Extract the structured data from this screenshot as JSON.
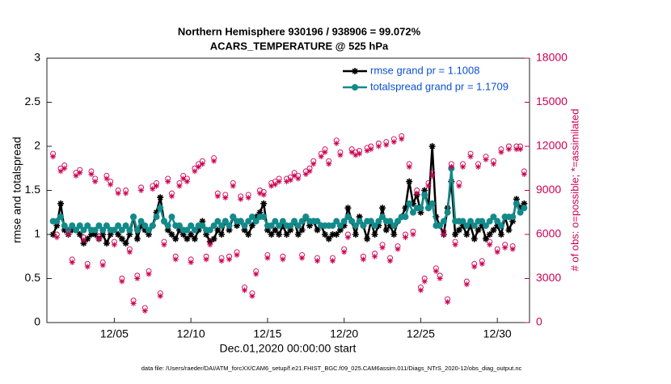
{
  "chart_data": {
    "type": "line",
    "title": [
      "Northern Hemisphere 930196 / 938906 = 99.072%",
      "ACARS_TEMPERATURE @ 525 hPa"
    ],
    "xlabel": "Dec.01,2020 00:00:00 start",
    "ylabel": "rmse and totalspread",
    "y2label": "# of obs: o=possible; *=assimilated",
    "footer": "data file: /Users/raeder/DAI/ATM_forcXX/CAM6_setup/f.e21.FHIST_BGC.f09_025.CAM6assim.011/Diags_NTrS_2020-12/obs_diag_output.nc",
    "xlim": [
      -0.4,
      31.1
    ],
    "xticks": [
      {
        "value": 4,
        "label": "12/05"
      },
      {
        "value": 9,
        "label": "12/10"
      },
      {
        "value": 14,
        "label": "12/15"
      },
      {
        "value": 19,
        "label": "12/20"
      },
      {
        "value": 24,
        "label": "12/25"
      },
      {
        "value": 29,
        "label": "12/30"
      }
    ],
    "ylim": [
      0,
      3
    ],
    "yticks": [
      0,
      0.5,
      1,
      1.5,
      2,
      2.5,
      3
    ],
    "y2lim": [
      0,
      18000
    ],
    "y2ticks": [
      0,
      3000,
      6000,
      9000,
      12000,
      15000,
      18000
    ],
    "grid": false,
    "legend": "upper right",
    "x": [
      0,
      0.25,
      0.5,
      0.75,
      1,
      1.25,
      1.5,
      1.75,
      2,
      2.25,
      2.5,
      2.75,
      3,
      3.25,
      3.5,
      3.75,
      4,
      4.25,
      4.5,
      4.75,
      5,
      5.25,
      5.5,
      5.75,
      6,
      6.25,
      6.5,
      6.75,
      7,
      7.25,
      7.5,
      7.75,
      8,
      8.25,
      8.5,
      8.75,
      9,
      9.25,
      9.5,
      9.75,
      10,
      10.25,
      10.5,
      10.75,
      11,
      11.25,
      11.5,
      11.75,
      12,
      12.25,
      12.5,
      12.75,
      13,
      13.25,
      13.5,
      13.75,
      14,
      14.25,
      14.5,
      14.75,
      15,
      15.25,
      15.5,
      15.75,
      16,
      16.25,
      16.5,
      16.75,
      17,
      17.25,
      17.5,
      17.75,
      18,
      18.25,
      18.5,
      18.75,
      19,
      19.25,
      19.5,
      19.75,
      20,
      20.25,
      20.5,
      20.75,
      21,
      21.25,
      21.5,
      21.75,
      22,
      22.25,
      22.5,
      22.75,
      23,
      23.25,
      23.5,
      23.75,
      24,
      24.25,
      24.5,
      24.75,
      25,
      25.25,
      25.5,
      25.75,
      26,
      26.25,
      26.5,
      26.75,
      27,
      27.25,
      27.5,
      27.75,
      28,
      28.25,
      28.5,
      28.75,
      29,
      29.25,
      29.5,
      29.75,
      30,
      30.25,
      30.5,
      30.75
    ],
    "series": [
      {
        "name": "rmse grand pr = 1.1008",
        "color": "#000000",
        "marker": "asterisk",
        "line": true,
        "axis": "y",
        "values": [
          1.0,
          1.1,
          1.35,
          1.05,
          1.0,
          1.05,
          1.05,
          1.0,
          0.9,
          0.95,
          1.0,
          1.0,
          0.95,
          1.0,
          0.9,
          1.0,
          1.05,
          1.0,
          0.95,
          0.9,
          1.0,
          1.2,
          0.95,
          1.1,
          1.05,
          1.0,
          1.1,
          1.25,
          1.42,
          1.15,
          1.05,
          1.0,
          0.95,
          1.05,
          1.0,
          0.95,
          1.0,
          0.95,
          1.05,
          1.15,
          1.0,
          0.92,
          0.95,
          1.05,
          1.0,
          1.15,
          1.05,
          1.2,
          1.1,
          1.15,
          1.05,
          1.0,
          1.1,
          1.2,
          1.25,
          1.35,
          1.05,
          1.0,
          1.05,
          1.0,
          1.1,
          1.0,
          1.05,
          1.15,
          1.0,
          1.05,
          1.2,
          1.1,
          1.15,
          1.05,
          1.1,
          1.0,
          0.95,
          1.0,
          1.0,
          1.05,
          1.1,
          1.3,
          1.15,
          1.0,
          1.2,
          1.1,
          0.95,
          1.15,
          1.0,
          1.1,
          1.3,
          1.05,
          1.1,
          1.0,
          1.15,
          1.2,
          1.3,
          1.6,
          1.35,
          1.45,
          1.25,
          1.5,
          1.3,
          2.0,
          1.2,
          1.1,
          1.0,
          1.3,
          1.6,
          1.0,
          1.05,
          1.1,
          1.0,
          1.1,
          0.95,
          1.05,
          1.1,
          0.95,
          1.0,
          1.05,
          1.1,
          1.0,
          1.2,
          1.05,
          1.15,
          1.4,
          1.3,
          1.35
        ]
      },
      {
        "name": "totalspread grand pr = 1.1709",
        "color": "#138a8a",
        "marker": "circle",
        "line": true,
        "axis": "y",
        "values": [
          1.15,
          1.15,
          1.2,
          1.1,
          1.05,
          1.1,
          1.05,
          1.1,
          1.05,
          1.1,
          1.05,
          1.05,
          1.1,
          1.05,
          1.1,
          1.05,
          1.05,
          1.1,
          1.05,
          1.1,
          1.05,
          1.2,
          1.05,
          1.15,
          1.1,
          1.05,
          1.1,
          1.2,
          1.3,
          1.15,
          1.1,
          1.2,
          1.1,
          1.1,
          1.05,
          1.05,
          1.1,
          1.05,
          1.1,
          1.1,
          1.05,
          1.05,
          1.1,
          1.15,
          1.1,
          1.15,
          1.1,
          1.2,
          1.15,
          1.15,
          1.1,
          1.15,
          1.2,
          1.15,
          1.2,
          1.2,
          1.1,
          1.1,
          1.15,
          1.1,
          1.15,
          1.1,
          1.1,
          1.15,
          1.1,
          1.15,
          1.2,
          1.15,
          1.15,
          1.15,
          1.1,
          1.1,
          1.1,
          1.1,
          1.15,
          1.1,
          1.15,
          1.2,
          1.15,
          1.1,
          1.15,
          1.1,
          1.15,
          1.15,
          1.1,
          1.15,
          1.2,
          1.15,
          1.15,
          1.1,
          1.15,
          1.2,
          1.2,
          1.35,
          1.25,
          1.3,
          1.3,
          1.45,
          1.3,
          1.35,
          1.1,
          1.1,
          1.15,
          1.25,
          1.75,
          1.15,
          1.15,
          1.15,
          1.1,
          1.15,
          1.1,
          1.15,
          1.15,
          1.1,
          1.15,
          1.2,
          1.15,
          1.1,
          1.2,
          1.2,
          1.2,
          1.35,
          1.25,
          1.3
        ]
      },
      {
        "color": "#cc0052",
        "marker": "open-circle",
        "line": false,
        "axis": "y2",
        "values": [
          11500,
          6000,
          10500,
          10700,
          6200,
          4300,
          10200,
          10400,
          5800,
          4000,
          10300,
          9800,
          5900,
          4100,
          10000,
          9600,
          5500,
          9000,
          3000,
          9000,
          5000,
          1500,
          3200,
          9200,
          1000,
          3500,
          9300,
          9500,
          2000,
          5500,
          9800,
          8800,
          4500,
          9500,
          10000,
          9800,
          4300,
          10500,
          10800,
          11000,
          4500,
          5500,
          11200,
          8800,
          4400,
          8700,
          4500,
          9500,
          4800,
          8600,
          2400,
          8700,
          2000,
          3500,
          9000,
          8900,
          4600,
          9500,
          9600,
          9800,
          4500,
          9800,
          9900,
          10200,
          10000,
          4600,
          10300,
          10500,
          11000,
          4400,
          11500,
          11800,
          11000,
          4400,
          12400,
          11600,
          5000,
          6000,
          11800,
          11600,
          11700,
          4500,
          11900,
          12000,
          4700,
          12200,
          5300,
          12300,
          4400,
          12500,
          5200,
          12700,
          6000,
          10800,
          6200,
          9000,
          2400,
          3000,
          9500,
          10200,
          3700,
          3200,
          6200,
          1600,
          10800,
          5500,
          9500,
          10800,
          2800,
          11500,
          4000,
          10800,
          4200,
          11300,
          5500,
          11000,
          5000,
          11800,
          5300,
          12000,
          5200,
          12000,
          12000,
          10300
        ]
      },
      {
        "color": "#cc0052",
        "marker": "asterisk",
        "line": false,
        "axis": "y2",
        "values": [
          11300,
          5800,
          10300,
          10500,
          6000,
          4100,
          10000,
          10200,
          5600,
          3800,
          10100,
          9600,
          5700,
          3900,
          9800,
          9400,
          5300,
          8800,
          2800,
          8800,
          4800,
          1300,
          3000,
          9000,
          800,
          3300,
          9100,
          9300,
          1800,
          5300,
          9600,
          8600,
          4300,
          9300,
          9800,
          9600,
          4100,
          10300,
          10600,
          10800,
          4300,
          5300,
          11000,
          8600,
          4200,
          8500,
          4300,
          9300,
          4600,
          8400,
          2200,
          8500,
          1800,
          3300,
          8800,
          8700,
          4400,
          9300,
          9400,
          9600,
          4300,
          9600,
          9700,
          10000,
          9800,
          4400,
          10100,
          10300,
          10800,
          4200,
          11300,
          11600,
          10800,
          4200,
          12200,
          11400,
          4800,
          5800,
          11600,
          11400,
          11500,
          4300,
          11700,
          11800,
          4500,
          12000,
          5100,
          12100,
          4200,
          12300,
          5000,
          12500,
          5800,
          10600,
          6000,
          8800,
          2200,
          2800,
          9300,
          10000,
          3500,
          3000,
          6000,
          1400,
          10600,
          5300,
          9300,
          10600,
          2600,
          11300,
          3800,
          10600,
          4000,
          11100,
          5300,
          10800,
          4800,
          11600,
          5100,
          11800,
          5000,
          11800,
          11800,
          10100
        ]
      }
    ]
  }
}
